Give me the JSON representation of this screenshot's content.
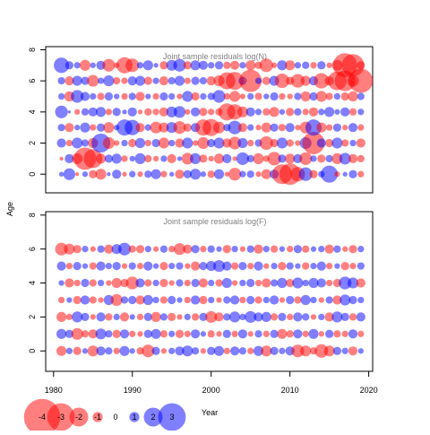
{
  "chart_data": {
    "type": "scatter",
    "subtype": "bubble",
    "ylabel": "Age",
    "xlabel": "Year",
    "x_ticks": [
      "1980",
      "1990",
      "2000",
      "2010",
      "2020"
    ],
    "y_ticks": [
      "0",
      "2",
      "4",
      "6",
      "8"
    ],
    "xlim": [
      1979,
      2020.5
    ],
    "ylim": [
      -1.2,
      8.2
    ],
    "years": [
      1981,
      2019
    ],
    "ages": [
      0,
      7
    ],
    "positive_color": "#0000ff",
    "negative_color": "#ff0000",
    "legend": {
      "position": "bottom-left",
      "entries": [
        {
          "label": "-4",
          "value": -4
        },
        {
          "label": "-3",
          "value": -3
        },
        {
          "label": "-2",
          "value": -2
        },
        {
          "label": "-1",
          "value": -1
        },
        {
          "label": "0",
          "value": 0
        },
        {
          "label": "1",
          "value": 1
        },
        {
          "label": "2",
          "value": 2
        },
        {
          "label": "3",
          "value": 3
        }
      ]
    },
    "panels": [
      {
        "title": "Joint sample residuals log(N)",
        "rows": [
          {
            "age": 0,
            "residuals": [
              0.4,
              1.2,
              -0.3,
              0.5,
              -0.8,
              -1.1,
              0.3,
              0.9,
              -0.4,
              0.6,
              -0.5,
              0.7,
              1.0,
              -0.6,
              0.4,
              -0.9,
              0.8,
              1.1,
              0.5,
              -0.7,
              1.0,
              -0.4,
              -1.3,
              0.6,
              0.7,
              -0.5,
              -1.0,
              0.9,
              -2.1,
              -2.3,
              -1.5,
              1.4,
              -0.8,
              0.6,
              1.8,
              -0.5,
              0.4,
              0.8,
              -0.6
            ]
          },
          {
            "age": 1,
            "residuals": [
              -0.3,
              0.9,
              -1.1,
              -2.4,
              -2.0,
              -1.0,
              0.8,
              1.0,
              -0.6,
              0.5,
              1.1,
              -0.7,
              -0.5,
              0.6,
              -0.9,
              0.4,
              -1.2,
              1.1,
              -0.8,
              -0.5,
              -1.0,
              0.9,
              -0.4,
              1.3,
              0.7,
              -1.1,
              -0.6,
              -1.4,
              0.8,
              -1.0,
              0.9,
              -1.3,
              0.6,
              -0.8,
              0.7,
              -1.1,
              1.2,
              -0.9,
              -0.7
            ]
          },
          {
            "age": 2,
            "residuals": [
              0.9,
              -0.6,
              1.1,
              0.7,
              -1.0,
              2.0,
              -1.2,
              -0.5,
              0.6,
              -0.8,
              1.0,
              -0.6,
              0.8,
              -1.1,
              0.6,
              -0.9,
              1.1,
              -0.5,
              -1.2,
              0.8,
              1.1,
              -0.9,
              -1.3,
              1.0,
              -0.6,
              0.7,
              -1.4,
              -0.8,
              1.1,
              -0.7,
              -0.5,
              1.2,
              -2.4,
              0.9,
              -0.8,
              1.1,
              -0.7,
              0.6,
              -0.9
            ]
          },
          {
            "age": 3,
            "residuals": [
              0.7,
              -0.9,
              0.5,
              1.0,
              -0.6,
              0.8,
              -1.1,
              0.5,
              1.7,
              1.6,
              -0.9,
              0.6,
              -1.2,
              -1.0,
              1.1,
              -1.3,
              -0.8,
              0.9,
              -1.7,
              -1.8,
              -1.2,
              0.7,
              1.4,
              -0.9,
              0.6,
              -0.5,
              -1.0,
              0.8,
              -0.7,
              0.9,
              -0.5,
              -1.2,
              1.7,
              -1.0,
              -0.6,
              0.8,
              -0.5,
              0.9,
              -0.6
            ]
          },
          {
            "age": 4,
            "residuals": [
              1.3,
              0.2,
              -0.5,
              0.7,
              0.9,
              1.0,
              -0.6,
              0.8,
              0.4,
              0.9,
              -0.4,
              -0.7,
              -0.6,
              -0.9,
              1.1,
              1.2,
              -0.5,
              0.9,
              -0.8,
              -0.6,
              -0.7,
              -1.8,
              -1.6,
              -1.1,
              0.9,
              0.6,
              -0.7,
              -1.0,
              0.5,
              -0.8,
              0.7,
              -0.6,
              -0.9,
              0.6,
              1.0,
              0.5,
              0.9,
              -0.7,
              0.6
            ]
          },
          {
            "age": 5,
            "residuals": [
              0.6,
              -1.0,
              1.3,
              0.9,
              0.6,
              -0.7,
              0.8,
              0.5,
              -0.6,
              0.7,
              -0.9,
              0.5,
              -0.6,
              0.8,
              0.6,
              -0.5,
              1.1,
              -0.8,
              0.6,
              0.7,
              1.3,
              -0.6,
              -1.1,
              -0.5,
              0.6,
              -0.7,
              0.5,
              0.8,
              -0.6,
              -0.5,
              0.7,
              -1.0,
              0.8,
              -1.1,
              -0.7,
              0.6,
              -0.8,
              -1.0,
              0.7
            ]
          },
          {
            "age": 6,
            "residuals": [
              0.7,
              -0.9,
              1.0,
              0.8,
              -1.2,
              0.6,
              1.1,
              -0.7,
              -0.6,
              0.9,
              1.0,
              -0.8,
              0.6,
              -0.9,
              0.7,
              1.0,
              -0.6,
              0.8,
              0.7,
              -0.9,
              -1.1,
              -1.8,
              -1.9,
              0.8,
              -2.4,
              0.6,
              -0.8,
              1.0,
              -1.5,
              -0.8,
              -1.4,
              -1.0,
              0.9,
              -1.6,
              -0.9,
              -2.0,
              -2.2,
              -1.2,
              -2.6
            ]
          },
          {
            "age": 7,
            "residuals": [
              1.6,
              0.8,
              0.6,
              -1.1,
              0.5,
              0.9,
              -1.3,
              -0.5,
              -1.7,
              -1.4,
              0.6,
              1.0,
              0.4,
              -0.8,
              1.1,
              1.3,
              -0.8,
              1.0,
              0.9,
              0.6,
              0.8,
              -0.7,
              -0.9,
              0.6,
              -1.0,
              -0.7,
              -1.4,
              -0.5,
              1.0,
              -1.0,
              0.6,
              0.7,
              -0.6,
              0.8,
              -0.5,
              -1.1,
              -2.6,
              -2.4,
              -0.8
            ]
          }
        ]
      },
      {
        "title": "Joint sample residuals log(F)",
        "rows": [
          {
            "age": 0,
            "residuals": [
              -1.0,
              0.6,
              -0.8,
              0.5,
              -1.1,
              0.9,
              0.7,
              -0.6,
              1.0,
              0.5,
              -0.7,
              -1.3,
              0.8,
              -0.5,
              0.6,
              0.9,
              1.1,
              0.7,
              -0.5,
              0.8,
              1.0,
              -0.6,
              0.9,
              0.7,
              -0.6,
              1.0,
              -1.1,
              0.8,
              0.6,
              0.9,
              -1.3,
              -1.1,
              -0.7,
              -1.4,
              -1.1,
              0.8,
              0.6,
              -0.9,
              0.5
            ]
          },
          {
            "age": 1,
            "residuals": [
              1.0,
              0.8,
              -1.2,
              -0.7,
              -0.9,
              1.1,
              0.7,
              -0.8,
              0.9,
              -0.6,
              -0.5,
              0.8,
              1.0,
              -0.7,
              0.6,
              -0.8,
              -0.6,
              0.9,
              0.5,
              -0.7,
              -0.5,
              0.8,
              -0.6,
              0.9,
              -0.5,
              0.7,
              -0.6,
              0.8,
              -1.0,
              -0.7,
              0.9,
              -0.6,
              1.0,
              -0.5,
              0.8,
              -0.7,
              -0.6,
              0.9,
              -0.6
            ]
          },
          {
            "age": 2,
            "residuals": [
              -1.0,
              -0.6,
              1.1,
              0.8,
              -0.5,
              0.9,
              -0.7,
              0.6,
              -0.9,
              0.5,
              -0.6,
              0.8,
              -1.0,
              0.7,
              -0.8,
              -0.5,
              0.6,
              -0.7,
              0.8,
              -1.2,
              -0.9,
              0.7,
              1.1,
              0.6,
              1.2,
              0.9,
              1.0,
              -0.7,
              0.8,
              -0.6,
              0.9,
              0.7,
              -0.5,
              0.6,
              -0.9,
              1.1,
              0.8,
              -0.7,
              0.9
            ]
          },
          {
            "age": 3,
            "residuals": [
              -0.6,
              0.5,
              -0.8,
              0.9,
              -0.7,
              -0.5,
              1.0,
              -1.2,
              0.7,
              0.8,
              -0.9,
              1.0,
              0.6,
              -0.7,
              0.8,
              0.5,
              -0.6,
              0.9,
              -0.8,
              0.6,
              -0.5,
              0.7,
              0.9,
              -0.6,
              0.8,
              -0.7,
              0.6,
              0.9,
              -0.5,
              0.8,
              -0.7,
              1.0,
              0.6,
              -0.5,
              0.7,
              -0.9,
              1.1,
              0.8,
              0.6
            ]
          },
          {
            "age": 4,
            "residuals": [
              0.5,
              -0.9,
              -0.6,
              0.8,
              -0.7,
              0.6,
              -0.5,
              -1.0,
              -0.8,
              -1.3,
              0.9,
              -0.7,
              0.6,
              -0.8,
              -0.5,
              0.7,
              -0.6,
              0.8,
              -0.9,
              0.6,
              -0.7,
              1.0,
              -0.5,
              0.6,
              0.8,
              -0.6,
              -0.9,
              0.7,
              1.0,
              -0.8,
              1.1,
              0.6,
              1.0,
              0.9,
              -0.6,
              -0.8,
              1.3,
              1.1,
              -0.9
            ]
          },
          {
            "age": 5,
            "residuals": [
              0.9,
              -0.6,
              0.8,
              0.5,
              -0.7,
              0.9,
              0.6,
              0.8,
              -0.5,
              0.7,
              -0.6,
              0.9,
              0.5,
              -0.8,
              0.6,
              0.7,
              -0.5,
              -0.9,
              0.8,
              1.0,
              1.2,
              0.9,
              -0.7,
              0.8,
              -0.6,
              0.9,
              -0.5,
              0.6,
              -0.8,
              0.7,
              0.5,
              -0.7,
              0.6,
              0.9,
              -0.6,
              0.5,
              -0.8,
              -0.6,
              0.7
            ]
          },
          {
            "age": 6,
            "residuals": [
              -1.3,
              -1.1,
              -0.8,
              0.6,
              -0.5,
              0.7,
              -0.9,
              1.0,
              1.3,
              -0.7,
              -0.8,
              0.6,
              -0.5,
              0.7,
              -0.6,
              -1.2,
              -0.9,
              0.8,
              -0.6,
              0.7,
              0.5,
              -0.8,
              0.6,
              -0.5,
              0.7,
              -0.9,
              0.6,
              -0.7,
              0.5,
              -0.6,
              0.8,
              -0.7,
              0.5,
              0.6,
              -0.9,
              0.7,
              -0.5,
              -0.8,
              0.6
            ]
          }
        ]
      }
    ]
  }
}
